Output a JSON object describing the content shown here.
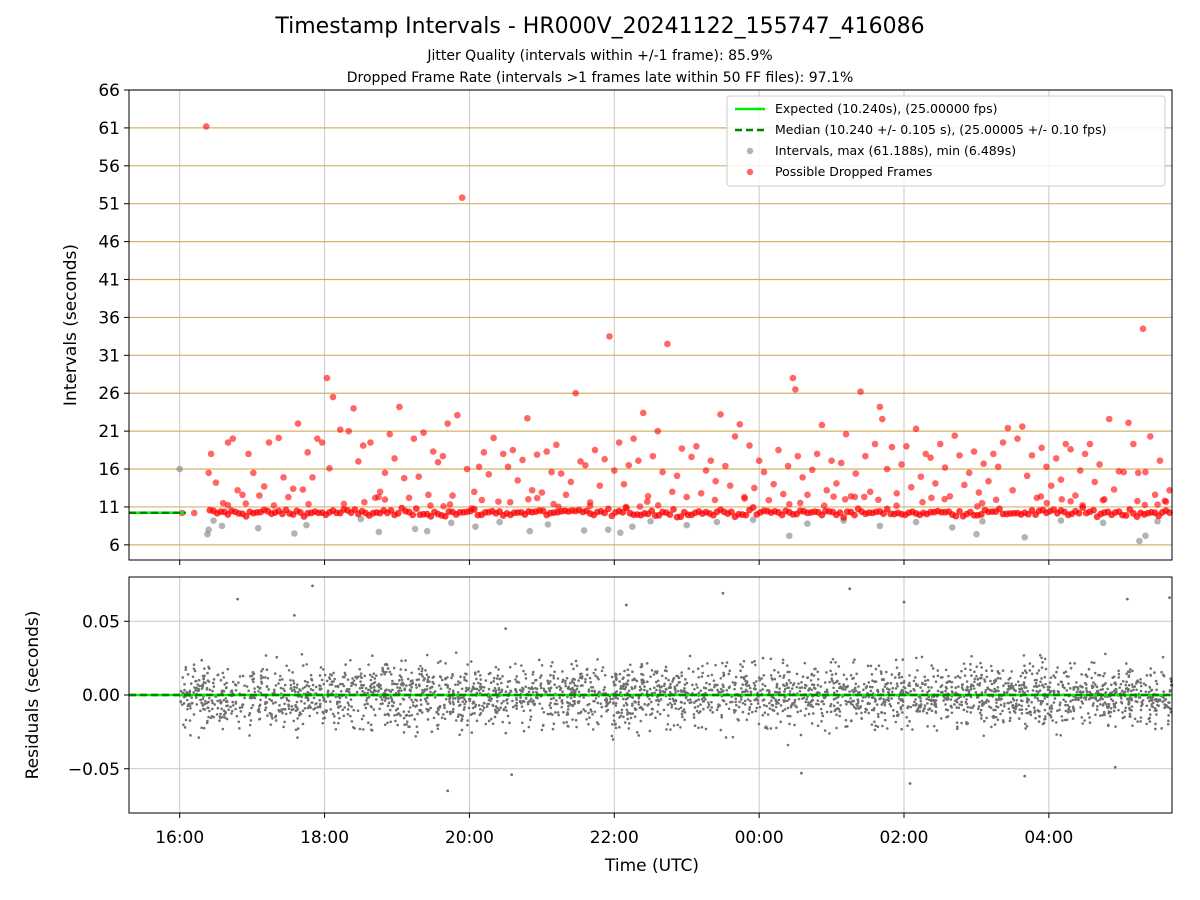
{
  "chart_data": [
    {
      "type": "scatter",
      "title": "Timestamp Intervals - HR000V_20241122_155747_416086",
      "subtitle_lines": [
        "Jitter Quality (intervals within +/-1 frame): 85.9%",
        "Dropped Frame Rate (intervals >1 frames late within 50 FF files): 97.1%"
      ],
      "xlabel": "",
      "ylabel": "Intervals (seconds)",
      "x_range": [
        "15:18",
        "05:42"
      ],
      "x_ticks": [
        "16:00",
        "18:00",
        "20:00",
        "22:00",
        "00:00",
        "02:00",
        "04:00"
      ],
      "ylim": [
        4,
        66
      ],
      "y_ticks": [
        6,
        11,
        16,
        21,
        26,
        31,
        36,
        41,
        46,
        51,
        56,
        61,
        66
      ],
      "grid": "vertical at x ticks; horizontal goldenrod lines at y ticks",
      "legend_position": "top-right",
      "legend": [
        "Expected (10.240s), (25.00000 fps)",
        "Median (10.240 +/- 0.105 s), (25.00005 +/- 0.10 fps)",
        "Intervals, max (61.188s), min (6.489s)",
        "Possible Dropped Frames"
      ],
      "expected_line": 10.24,
      "median_line": 10.24,
      "baseline_band": {
        "x_start": "16:25",
        "x_end": "05:42",
        "y": 10.24
      },
      "dropped_frames": [
        {
          "x": "16:02",
          "y": 10.2
        },
        {
          "x": "16:12",
          "y": 10.2
        },
        {
          "x": "16:22",
          "y": 61.2
        },
        {
          "x": "16:24",
          "y": 15.5
        },
        {
          "x": "16:26",
          "y": 18.0
        },
        {
          "x": "16:30",
          "y": 14.2
        },
        {
          "x": "16:36",
          "y": 11.5
        },
        {
          "x": "16:40",
          "y": 19.5
        },
        {
          "x": "16:44",
          "y": 20.0
        },
        {
          "x": "16:48",
          "y": 13.2
        },
        {
          "x": "16:52",
          "y": 12.6
        },
        {
          "x": "16:57",
          "y": 18.0
        },
        {
          "x": "17:01",
          "y": 15.5
        },
        {
          "x": "17:06",
          "y": 12.5
        },
        {
          "x": "17:10",
          "y": 13.7
        },
        {
          "x": "17:14",
          "y": 19.5
        },
        {
          "x": "17:18",
          "y": 11.2
        },
        {
          "x": "17:22",
          "y": 20.1
        },
        {
          "x": "17:26",
          "y": 14.9
        },
        {
          "x": "17:30",
          "y": 12.3
        },
        {
          "x": "17:34",
          "y": 13.4
        },
        {
          "x": "17:38",
          "y": 22.0
        },
        {
          "x": "17:42",
          "y": 13.3
        },
        {
          "x": "17:46",
          "y": 18.2
        },
        {
          "x": "17:50",
          "y": 14.9
        },
        {
          "x": "17:54",
          "y": 20.0
        },
        {
          "x": "17:58",
          "y": 19.5
        },
        {
          "x": "18:02",
          "y": 28.0
        },
        {
          "x": "18:04",
          "y": 16.1
        },
        {
          "x": "18:07",
          "y": 25.5
        },
        {
          "x": "18:13",
          "y": 21.2
        },
        {
          "x": "18:16",
          "y": 11.4
        },
        {
          "x": "18:20",
          "y": 21.0
        },
        {
          "x": "18:24",
          "y": 24.0
        },
        {
          "x": "18:28",
          "y": 17.0
        },
        {
          "x": "18:32",
          "y": 19.1
        },
        {
          "x": "18:38",
          "y": 19.5
        },
        {
          "x": "18:42",
          "y": 12.2
        },
        {
          "x": "18:46",
          "y": 13.0
        },
        {
          "x": "18:50",
          "y": 15.5
        },
        {
          "x": "18:54",
          "y": 20.6
        },
        {
          "x": "18:58",
          "y": 17.4
        },
        {
          "x": "19:02",
          "y": 24.2
        },
        {
          "x": "19:06",
          "y": 14.8
        },
        {
          "x": "19:10",
          "y": 12.2
        },
        {
          "x": "19:14",
          "y": 20.0
        },
        {
          "x": "19:18",
          "y": 15.0
        },
        {
          "x": "19:22",
          "y": 20.8
        },
        {
          "x": "19:26",
          "y": 12.6
        },
        {
          "x": "19:30",
          "y": 18.3
        },
        {
          "x": "19:34",
          "y": 16.9
        },
        {
          "x": "19:38",
          "y": 17.7
        },
        {
          "x": "19:42",
          "y": 22.0
        },
        {
          "x": "19:46",
          "y": 12.5
        },
        {
          "x": "19:50",
          "y": 23.1
        },
        {
          "x": "19:54",
          "y": 51.8
        },
        {
          "x": "19:58",
          "y": 16.0
        },
        {
          "x": "20:02",
          "y": 10.8
        },
        {
          "x": "20:04",
          "y": 13.0
        },
        {
          "x": "20:08",
          "y": 16.3
        },
        {
          "x": "20:12",
          "y": 18.2
        },
        {
          "x": "20:16",
          "y": 15.3
        },
        {
          "x": "20:20",
          "y": 20.1
        },
        {
          "x": "20:24",
          "y": 11.7
        },
        {
          "x": "20:28",
          "y": 18.0
        },
        {
          "x": "20:32",
          "y": 16.3
        },
        {
          "x": "20:36",
          "y": 18.5
        },
        {
          "x": "20:40",
          "y": 14.5
        },
        {
          "x": "20:44",
          "y": 17.2
        },
        {
          "x": "20:48",
          "y": 22.7
        },
        {
          "x": "20:52",
          "y": 13.2
        },
        {
          "x": "20:56",
          "y": 17.9
        },
        {
          "x": "21:00",
          "y": 12.9
        },
        {
          "x": "21:04",
          "y": 18.3
        },
        {
          "x": "21:08",
          "y": 15.6
        },
        {
          "x": "21:12",
          "y": 19.2
        },
        {
          "x": "21:16",
          "y": 15.4
        },
        {
          "x": "21:20",
          "y": 12.6
        },
        {
          "x": "21:24",
          "y": 14.3
        },
        {
          "x": "21:28",
          "y": 26.0
        },
        {
          "x": "21:32",
          "y": 17.0
        },
        {
          "x": "21:36",
          "y": 16.5
        },
        {
          "x": "21:40",
          "y": 11.6
        },
        {
          "x": "21:44",
          "y": 18.5
        },
        {
          "x": "21:48",
          "y": 13.8
        },
        {
          "x": "21:52",
          "y": 17.3
        },
        {
          "x": "21:56",
          "y": 33.5
        },
        {
          "x": "22:00",
          "y": 15.8
        },
        {
          "x": "22:04",
          "y": 19.5
        },
        {
          "x": "22:08",
          "y": 14.0
        },
        {
          "x": "22:12",
          "y": 16.5
        },
        {
          "x": "22:16",
          "y": 20.0
        },
        {
          "x": "22:20",
          "y": 17.1
        },
        {
          "x": "22:24",
          "y": 23.4
        },
        {
          "x": "22:28",
          "y": 12.4
        },
        {
          "x": "22:32",
          "y": 17.7
        },
        {
          "x": "22:36",
          "y": 21.0
        },
        {
          "x": "22:40",
          "y": 15.6
        },
        {
          "x": "22:44",
          "y": 32.5
        },
        {
          "x": "22:48",
          "y": 13.0
        },
        {
          "x": "22:52",
          "y": 15.1
        },
        {
          "x": "22:56",
          "y": 18.7
        },
        {
          "x": "23:00",
          "y": 12.3
        },
        {
          "x": "23:04",
          "y": 17.6
        },
        {
          "x": "23:08",
          "y": 19.0
        },
        {
          "x": "23:12",
          "y": 12.8
        },
        {
          "x": "23:16",
          "y": 15.8
        },
        {
          "x": "23:20",
          "y": 17.1
        },
        {
          "x": "23:24",
          "y": 14.4
        },
        {
          "x": "23:28",
          "y": 23.2
        },
        {
          "x": "23:32",
          "y": 16.4
        },
        {
          "x": "23:36",
          "y": 13.8
        },
        {
          "x": "23:40",
          "y": 20.3
        },
        {
          "x": "23:44",
          "y": 21.9
        },
        {
          "x": "23:48",
          "y": 12.1
        },
        {
          "x": "23:52",
          "y": 19.1
        },
        {
          "x": "23:56",
          "y": 13.5
        },
        {
          "x": "00:00",
          "y": 17.1
        },
        {
          "x": "00:04",
          "y": 15.6
        },
        {
          "x": "00:08",
          "y": 11.9
        },
        {
          "x": "00:12",
          "y": 14.0
        },
        {
          "x": "00:16",
          "y": 18.5
        },
        {
          "x": "00:20",
          "y": 12.7
        },
        {
          "x": "00:24",
          "y": 16.4
        },
        {
          "x": "00:28",
          "y": 28.0
        },
        {
          "x": "00:30",
          "y": 26.5
        },
        {
          "x": "00:32",
          "y": 17.7
        },
        {
          "x": "00:36",
          "y": 14.9
        },
        {
          "x": "00:40",
          "y": 12.6
        },
        {
          "x": "00:44",
          "y": 15.9
        },
        {
          "x": "00:48",
          "y": 18.0
        },
        {
          "x": "00:52",
          "y": 21.8
        },
        {
          "x": "00:56",
          "y": 13.2
        },
        {
          "x": "01:00",
          "y": 17.1
        },
        {
          "x": "01:04",
          "y": 14.1
        },
        {
          "x": "01:08",
          "y": 16.8
        },
        {
          "x": "01:12",
          "y": 20.6
        },
        {
          "x": "01:16",
          "y": 12.4
        },
        {
          "x": "01:20",
          "y": 15.4
        },
        {
          "x": "01:24",
          "y": 26.2
        },
        {
          "x": "01:28",
          "y": 17.7
        },
        {
          "x": "01:32",
          "y": 13.0
        },
        {
          "x": "01:36",
          "y": 19.3
        },
        {
          "x": "01:40",
          "y": 24.2
        },
        {
          "x": "01:42",
          "y": 22.6
        },
        {
          "x": "01:46",
          "y": 16.0
        },
        {
          "x": "01:50",
          "y": 18.9
        },
        {
          "x": "01:54",
          "y": 12.8
        },
        {
          "x": "01:58",
          "y": 16.6
        },
        {
          "x": "02:02",
          "y": 19.0
        },
        {
          "x": "02:06",
          "y": 13.6
        },
        {
          "x": "02:10",
          "y": 21.3
        },
        {
          "x": "02:14",
          "y": 15.0
        },
        {
          "x": "02:18",
          "y": 18.0
        },
        {
          "x": "02:22",
          "y": 17.5
        },
        {
          "x": "02:26",
          "y": 14.1
        },
        {
          "x": "02:30",
          "y": 19.3
        },
        {
          "x": "02:34",
          "y": 16.2
        },
        {
          "x": "02:38",
          "y": 12.4
        },
        {
          "x": "02:42",
          "y": 20.4
        },
        {
          "x": "02:46",
          "y": 17.8
        },
        {
          "x": "02:50",
          "y": 13.9
        },
        {
          "x": "02:54",
          "y": 15.5
        },
        {
          "x": "02:58",
          "y": 18.3
        },
        {
          "x": "03:02",
          "y": 12.9
        },
        {
          "x": "03:06",
          "y": 16.7
        },
        {
          "x": "03:10",
          "y": 14.4
        },
        {
          "x": "03:14",
          "y": 18.0
        },
        {
          "x": "03:18",
          "y": 16.3
        },
        {
          "x": "03:22",
          "y": 19.5
        },
        {
          "x": "03:26",
          "y": 21.4
        },
        {
          "x": "03:30",
          "y": 13.2
        },
        {
          "x": "03:34",
          "y": 20.0
        },
        {
          "x": "03:38",
          "y": 21.6
        },
        {
          "x": "03:42",
          "y": 15.1
        },
        {
          "x": "03:46",
          "y": 17.8
        },
        {
          "x": "03:50",
          "y": 12.2
        },
        {
          "x": "03:54",
          "y": 18.8
        },
        {
          "x": "03:58",
          "y": 16.3
        },
        {
          "x": "04:02",
          "y": 13.8
        },
        {
          "x": "04:06",
          "y": 17.4
        },
        {
          "x": "04:10",
          "y": 14.6
        },
        {
          "x": "04:14",
          "y": 19.3
        },
        {
          "x": "04:18",
          "y": 18.6
        },
        {
          "x": "04:22",
          "y": 12.5
        },
        {
          "x": "04:26",
          "y": 15.8
        },
        {
          "x": "04:30",
          "y": 18.0
        },
        {
          "x": "04:34",
          "y": 19.3
        },
        {
          "x": "04:38",
          "y": 14.3
        },
        {
          "x": "04:42",
          "y": 16.6
        },
        {
          "x": "04:46",
          "y": 12.0
        },
        {
          "x": "04:50",
          "y": 22.6
        },
        {
          "x": "04:54",
          "y": 13.3
        },
        {
          "x": "04:58",
          "y": 15.7
        },
        {
          "x": "05:02",
          "y": 15.6
        },
        {
          "x": "05:06",
          "y": 22.1
        },
        {
          "x": "05:10",
          "y": 19.3
        },
        {
          "x": "05:14",
          "y": 15.5
        },
        {
          "x": "05:18",
          "y": 34.5
        },
        {
          "x": "05:20",
          "y": 15.6
        },
        {
          "x": "05:24",
          "y": 20.3
        },
        {
          "x": "05:28",
          "y": 12.6
        },
        {
          "x": "05:32",
          "y": 17.1
        },
        {
          "x": "05:36",
          "y": 11.8
        },
        {
          "x": "05:40",
          "y": 13.2
        }
      ],
      "normal_intervals": [
        {
          "x": "16:00",
          "y": 16.0
        },
        {
          "x": "16:23",
          "y": 7.4
        },
        {
          "x": "16:24",
          "y": 8.0
        },
        {
          "x": "16:28",
          "y": 9.2
        },
        {
          "x": "16:35",
          "y": 8.5
        },
        {
          "x": "17:05",
          "y": 8.2
        },
        {
          "x": "17:35",
          "y": 7.5
        },
        {
          "x": "17:45",
          "y": 8.6
        },
        {
          "x": "18:30",
          "y": 9.4
        },
        {
          "x": "18:45",
          "y": 7.7
        },
        {
          "x": "19:15",
          "y": 8.1
        },
        {
          "x": "19:25",
          "y": 7.8
        },
        {
          "x": "19:45",
          "y": 8.9
        },
        {
          "x": "20:05",
          "y": 8.4
        },
        {
          "x": "20:25",
          "y": 9.0
        },
        {
          "x": "20:50",
          "y": 7.8
        },
        {
          "x": "21:05",
          "y": 8.7
        },
        {
          "x": "21:35",
          "y": 7.9
        },
        {
          "x": "21:55",
          "y": 8.0
        },
        {
          "x": "22:05",
          "y": 7.6
        },
        {
          "x": "22:15",
          "y": 8.4
        },
        {
          "x": "22:30",
          "y": 9.1
        },
        {
          "x": "23:00",
          "y": 8.6
        },
        {
          "x": "23:25",
          "y": 9.0
        },
        {
          "x": "23:55",
          "y": 9.3
        },
        {
          "x": "00:25",
          "y": 7.2
        },
        {
          "x": "00:40",
          "y": 8.8
        },
        {
          "x": "01:10",
          "y": 9.2
        },
        {
          "x": "01:40",
          "y": 8.5
        },
        {
          "x": "02:10",
          "y": 9.0
        },
        {
          "x": "02:40",
          "y": 8.3
        },
        {
          "x": "03:00",
          "y": 7.4
        },
        {
          "x": "03:05",
          "y": 9.1
        },
        {
          "x": "03:40",
          "y": 7.0
        },
        {
          "x": "04:10",
          "y": 9.2
        },
        {
          "x": "04:45",
          "y": 8.9
        },
        {
          "x": "05:15",
          "y": 6.5
        },
        {
          "x": "05:20",
          "y": 7.2
        },
        {
          "x": "05:30",
          "y": 9.1
        }
      ]
    },
    {
      "type": "scatter",
      "title": "",
      "xlabel": "Time (UTC)",
      "ylabel": "Residuals (seconds)",
      "x_range": [
        "15:18",
        "05:42"
      ],
      "x_ticks": [
        "16:00",
        "18:00",
        "20:00",
        "22:00",
        "00:00",
        "02:00",
        "04:00"
      ],
      "ylim": [
        -0.08,
        0.08
      ],
      "y_ticks": [
        0.05,
        0.0,
        -0.05
      ],
      "y_tick_labels": [
        "0.05",
        "0.00",
        "−0.05"
      ],
      "grid": "both axes",
      "zero_line": 0,
      "residual_spread_std": 0.015,
      "residual_point_count": 3100,
      "residual_outliers": [
        {
          "x": "16:48",
          "y": 0.065
        },
        {
          "x": "17:50",
          "y": 0.074
        },
        {
          "x": "17:35",
          "y": 0.054
        },
        {
          "x": "19:42",
          "y": -0.065
        },
        {
          "x": "20:30",
          "y": 0.045
        },
        {
          "x": "22:10",
          "y": 0.061
        },
        {
          "x": "23:30",
          "y": 0.069
        },
        {
          "x": "01:15",
          "y": 0.072
        },
        {
          "x": "02:00",
          "y": 0.063
        },
        {
          "x": "02:05",
          "y": -0.06
        },
        {
          "x": "03:40",
          "y": -0.055
        },
        {
          "x": "04:55",
          "y": -0.049
        },
        {
          "x": "05:05",
          "y": 0.065
        },
        {
          "x": "05:40",
          "y": 0.066
        },
        {
          "x": "20:35",
          "y": -0.054
        },
        {
          "x": "00:35",
          "y": -0.053
        }
      ]
    }
  ],
  "colors": {
    "expected_line": "#00ee00",
    "median_line": "#008000",
    "interval_points": "#808080",
    "dropped_points": "#ff0000",
    "y_gridline": "#d4b367",
    "x_gridline": "#c8c8c8",
    "residual_points": "#707070"
  }
}
